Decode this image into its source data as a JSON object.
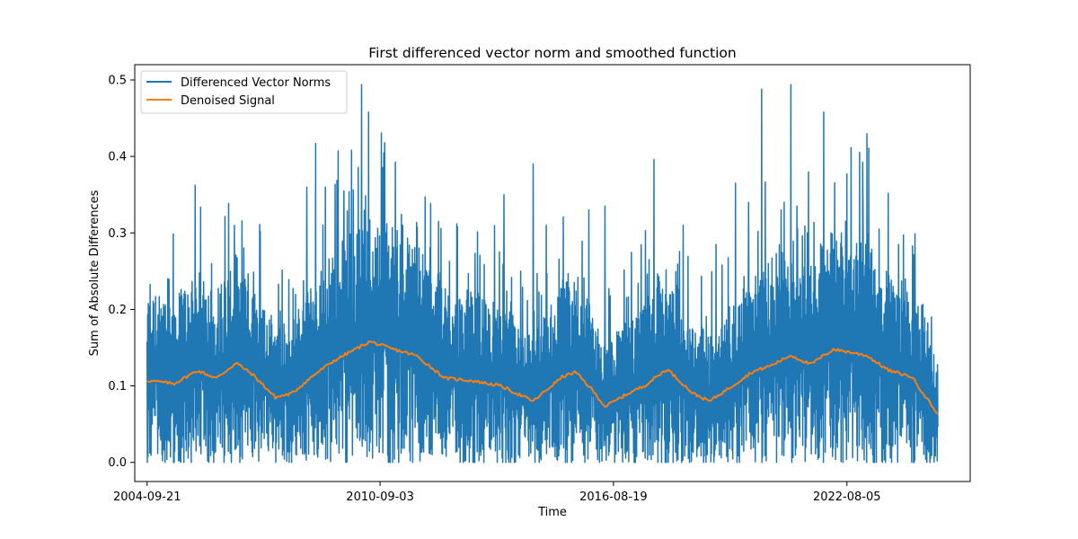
{
  "chart_data": {
    "type": "line",
    "title": "First differenced vector norm and smoothed function",
    "xlabel": "Time",
    "ylabel": "Sum of Absolute Differences",
    "x_range": [
      "2004-05-29",
      "2025-09-28"
    ],
    "x_data_range": [
      "2004-09-21",
      "2024-11-30"
    ],
    "xticks": [
      "2004-09-21",
      "2010-09-03",
      "2016-08-19",
      "2022-08-05"
    ],
    "ylim": [
      -0.025,
      0.52
    ],
    "yticks": [
      0.0,
      0.1,
      0.2,
      0.3,
      0.4,
      0.5
    ],
    "ytick_labels": [
      "0.0",
      "0.1",
      "0.2",
      "0.3",
      "0.4",
      "0.5"
    ],
    "legend_position": "upper-left",
    "grid": false,
    "series": [
      {
        "name": "Differenced Vector Norms",
        "color": "#1f77b4",
        "kind": "noisy",
        "description_points": [
          [
            "2004-09-21",
            0.17
          ],
          [
            "2005-06-01",
            0.24
          ],
          [
            "2006-06-01",
            0.27
          ],
          [
            "2007-03-01",
            0.31
          ],
          [
            "2008-10-01",
            0.36
          ],
          [
            "2009-01-10",
            0.417
          ],
          [
            "2009-03-01",
            0.36
          ],
          [
            "2010-03-15",
            0.494
          ],
          [
            "2010-05-20",
            0.458
          ],
          [
            "2010-09-01",
            0.42
          ],
          [
            "2013-10-01",
            0.35
          ],
          [
            "2014-08-01",
            0.39
          ],
          [
            "2017-09-01",
            0.396
          ],
          [
            "2020-01-01",
            0.365
          ],
          [
            "2020-06-01",
            0.488
          ],
          [
            "2021-03-01",
            0.494
          ],
          [
            "2022-01-01",
            0.458
          ],
          [
            "2023-01-01",
            0.342
          ],
          [
            "2024-01-01",
            0.285
          ],
          [
            "2024-11-01",
            0.185
          ]
        ],
        "peaks": [
          [
            "2005-04-01",
            0.24
          ],
          [
            "2006-12-15",
            0.31
          ],
          [
            "2008-10-20",
            0.36
          ],
          [
            "2009-01-10",
            0.417
          ],
          [
            "2009-04-10",
            0.36
          ],
          [
            "2009-10-01",
            0.355
          ],
          [
            "2010-03-15",
            0.494
          ],
          [
            "2010-05-20",
            0.458
          ],
          [
            "2010-10-15",
            0.418
          ],
          [
            "2011-04-01",
            0.31
          ],
          [
            "2012-03-01",
            0.315
          ],
          [
            "2013-11-01",
            0.35
          ],
          [
            "2014-08-01",
            0.39
          ],
          [
            "2014-12-01",
            0.31
          ],
          [
            "2016-01-01",
            0.33
          ],
          [
            "2016-06-01",
            0.335
          ],
          [
            "2017-09-01",
            0.396
          ],
          [
            "2018-06-01",
            0.31
          ],
          [
            "2019-04-01",
            0.285
          ],
          [
            "2019-10-01",
            0.365
          ],
          [
            "2020-02-01",
            0.34
          ],
          [
            "2020-06-01",
            0.488
          ],
          [
            "2020-12-01",
            0.33
          ],
          [
            "2021-03-01",
            0.494
          ],
          [
            "2021-08-01",
            0.3
          ],
          [
            "2022-01-01",
            0.458
          ],
          [
            "2022-06-15",
            0.3
          ],
          [
            "2023-01-01",
            0.342
          ],
          [
            "2023-06-01",
            0.305
          ],
          [
            "2023-12-01",
            0.285
          ],
          [
            "2024-10-01",
            0.19
          ]
        ]
      },
      {
        "name": "Denoised Signal",
        "color": "#ff7f0e",
        "kind": "smooth",
        "points": [
          [
            "2004-09-21",
            0.107
          ],
          [
            "2005-06-01",
            0.103
          ],
          [
            "2006-01-01",
            0.12
          ],
          [
            "2006-07-01",
            0.11
          ],
          [
            "2007-01-01",
            0.13
          ],
          [
            "2007-06-01",
            0.115
          ],
          [
            "2008-01-01",
            0.085
          ],
          [
            "2008-06-01",
            0.09
          ],
          [
            "2009-01-01",
            0.115
          ],
          [
            "2009-07-01",
            0.133
          ],
          [
            "2010-01-01",
            0.147
          ],
          [
            "2010-06-01",
            0.158
          ],
          [
            "2011-01-01",
            0.148
          ],
          [
            "2011-08-01",
            0.14
          ],
          [
            "2012-05-01",
            0.11
          ],
          [
            "2013-01-01",
            0.107
          ],
          [
            "2013-10-01",
            0.1
          ],
          [
            "2014-08-01",
            0.08
          ],
          [
            "2015-05-01",
            0.112
          ],
          [
            "2015-09-01",
            0.118
          ],
          [
            "2016-02-01",
            0.095
          ],
          [
            "2016-06-01",
            0.073
          ],
          [
            "2017-01-01",
            0.09
          ],
          [
            "2017-06-01",
            0.1
          ],
          [
            "2018-01-01",
            0.122
          ],
          [
            "2018-09-01",
            0.09
          ],
          [
            "2019-02-01",
            0.08
          ],
          [
            "2019-09-01",
            0.1
          ],
          [
            "2020-03-01",
            0.118
          ],
          [
            "2020-09-01",
            0.127
          ],
          [
            "2021-03-01",
            0.14
          ],
          [
            "2021-09-01",
            0.128
          ],
          [
            "2022-04-01",
            0.148
          ],
          [
            "2023-02-01",
            0.14
          ],
          [
            "2023-09-01",
            0.12
          ],
          [
            "2024-04-01",
            0.112
          ],
          [
            "2024-11-30",
            0.063
          ]
        ]
      }
    ]
  }
}
